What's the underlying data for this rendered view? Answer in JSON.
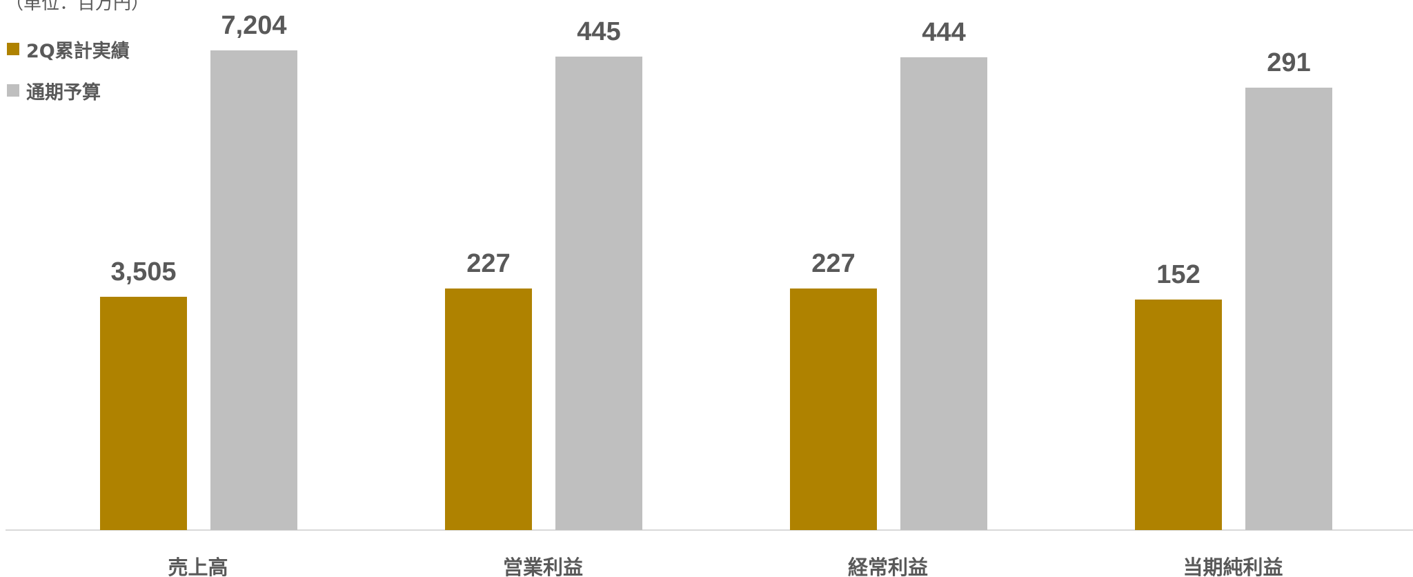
{
  "chart_data": {
    "type": "bar",
    "unit_label": "（単位：百万円）",
    "categories": [
      "売上高",
      "営業利益",
      "経常利益",
      "当期純利益"
    ],
    "series": [
      {
        "name": "2Q累計実績",
        "color": "#AF8200",
        "values": [
          3505,
          227,
          227,
          152
        ],
        "labels": [
          "3,505",
          "227",
          "227",
          "152"
        ]
      },
      {
        "name": "通期予算",
        "color": "#BFBFBF",
        "values": [
          7204,
          445,
          444,
          291
        ],
        "labels": [
          "7,204",
          "445",
          "444",
          "291"
        ]
      }
    ],
    "legend_position": "top-left",
    "grid": false,
    "axis_color": "#D9D9D9",
    "label_color": "#595959"
  }
}
